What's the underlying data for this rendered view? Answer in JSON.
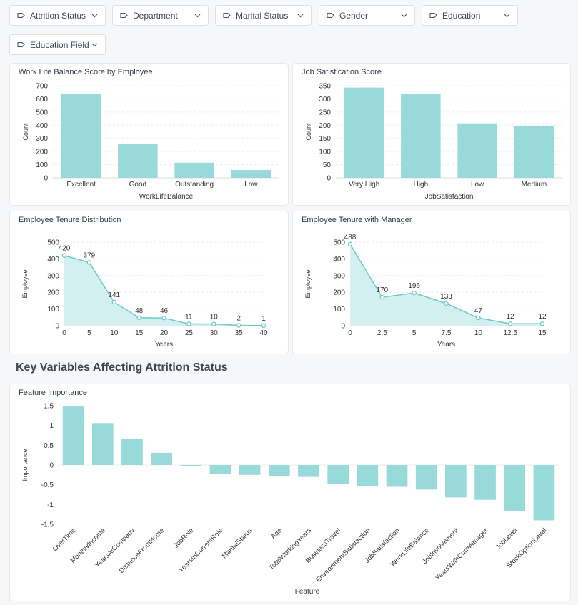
{
  "colors": {
    "bar": "#98d9d9",
    "line": "#6ccaca",
    "area": "#d3efef",
    "grid": "#e9ecef",
    "axis_text": "#333333"
  },
  "filters": [
    {
      "label": "Attrition Status",
      "icon": "tag-icon"
    },
    {
      "label": "Department",
      "icon": "tag-icon"
    },
    {
      "label": "Marital Status",
      "icon": "tag-icon"
    },
    {
      "label": "Gender",
      "icon": "tag-icon"
    },
    {
      "label": "Education",
      "icon": "tag-icon"
    },
    {
      "label": "Education Field",
      "icon": "tag-icon"
    }
  ],
  "section": {
    "title": "Key Variables Affecting Attrition Status"
  },
  "chart_data": [
    {
      "id": "wlb",
      "type": "bar",
      "title": "Work Life Balance Score by Employee",
      "categories": [
        "Excellent",
        "Good",
        "Outstanding",
        "Low"
      ],
      "values": [
        640,
        255,
        115,
        60
      ],
      "xlabel": "WorkLifeBalance",
      "ylabel": "Count",
      "ylim": [
        0,
        700
      ],
      "yticks": [
        0,
        100,
        200,
        300,
        400,
        500,
        600,
        700
      ],
      "grid": true
    },
    {
      "id": "js",
      "type": "bar",
      "title": "Job Satisfication Score",
      "categories": [
        "Very High",
        "High",
        "Low",
        "Medium"
      ],
      "values": [
        343,
        320,
        207,
        197
      ],
      "xlabel": "JobSatisfaction",
      "ylabel": "Count",
      "ylim": [
        0,
        350
      ],
      "yticks": [
        0,
        50,
        100,
        150,
        200,
        250,
        300,
        350
      ],
      "grid": true
    },
    {
      "id": "tenure",
      "type": "area",
      "title": "Employee Tenure Distribution",
      "x": [
        0,
        5,
        10,
        15,
        20,
        25,
        30,
        35,
        40
      ],
      "values": [
        420,
        379,
        141,
        48,
        46,
        11,
        10,
        2,
        1
      ],
      "data_labels": [
        "420",
        "379",
        "141",
        "48",
        "46",
        "11",
        "10",
        "2",
        "1"
      ],
      "xticks": [
        "0",
        "5",
        "10",
        "15",
        "20",
        "25",
        "30",
        "35",
        "40"
      ],
      "xlabel": "Years",
      "ylabel": "Employee",
      "xlim": [
        0,
        40
      ],
      "ylim": [
        0,
        500
      ],
      "yticks": [
        0,
        100,
        200,
        300,
        400,
        500
      ],
      "grid": true
    },
    {
      "id": "manager",
      "type": "area",
      "title": "Employee Tenure with Manager",
      "x": [
        0,
        2.5,
        5,
        7.5,
        10,
        12.5,
        15
      ],
      "values": [
        488,
        170,
        196,
        133,
        47,
        12,
        12
      ],
      "data_labels": [
        "488",
        "170",
        "196",
        "133",
        "47",
        "12",
        "12"
      ],
      "xticks": [
        "0",
        "2.5",
        "5",
        "7.5",
        "10",
        "12.5",
        "15"
      ],
      "xlabel": "Years",
      "ylabel": "Employee",
      "xlim": [
        0,
        15
      ],
      "ylim": [
        0,
        500
      ],
      "yticks": [
        0,
        100,
        200,
        300,
        400,
        500
      ],
      "grid": true
    },
    {
      "id": "fi",
      "type": "bar",
      "title": "Feature Importance",
      "categories": [
        "OverTime",
        "MonthlyIncome",
        "YearsAtCompany",
        "DistanceFromHome",
        "JobRole",
        "YearsInCurrentRole",
        "MaritalStatus",
        "Age",
        "TotalWorkingYears",
        "BusinessTravel",
        "EnvironmentSatisfaction",
        "JobSatisfaction",
        "WorkLifeBalance",
        "JobInvolvement",
        "YearsWithCurrManager",
        "JobLevel",
        "StockOptionLevel"
      ],
      "values": [
        1.48,
        1.06,
        0.67,
        0.31,
        -0.02,
        -0.23,
        -0.25,
        -0.28,
        -0.3,
        -0.48,
        -0.54,
        -0.55,
        -0.62,
        -0.82,
        -0.88,
        -1.17,
        -1.4
      ],
      "xlabel": "Feature",
      "ylabel": "Importance",
      "ylim": [
        -1.5,
        1.5
      ],
      "yticks": [
        -1.5,
        -1,
        -0.5,
        0,
        0.5,
        1,
        1.5
      ],
      "ytick_labels": [
        "-1.5",
        "-1",
        "-0.5",
        "0",
        "0.5",
        "1",
        "1.5"
      ],
      "grid": false
    }
  ]
}
